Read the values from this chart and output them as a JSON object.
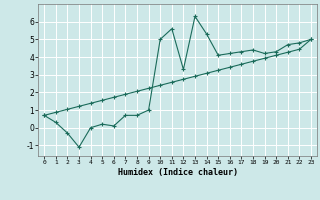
{
  "xlabel": "Humidex (Indice chaleur)",
  "ylabel": "",
  "bg_color": "#cde8e8",
  "grid_color": "#ffffff",
  "line_color": "#1a6b5a",
  "xlim": [
    -0.5,
    23.5
  ],
  "ylim": [
    -1.6,
    7.0
  ],
  "x_ticks": [
    0,
    1,
    2,
    3,
    4,
    5,
    6,
    7,
    8,
    9,
    10,
    11,
    12,
    13,
    14,
    15,
    16,
    17,
    18,
    19,
    20,
    21,
    22,
    23
  ],
  "y_ticks": [
    -1,
    0,
    1,
    2,
    3,
    4,
    5,
    6
  ],
  "line1_x": [
    0,
    1,
    2,
    3,
    4,
    5,
    6,
    7,
    8,
    9,
    10,
    11,
    12,
    13,
    14,
    15,
    16,
    17,
    18,
    19,
    20,
    21,
    22,
    23
  ],
  "line1_y": [
    0.7,
    0.3,
    -0.3,
    -1.1,
    0.0,
    0.2,
    0.1,
    0.7,
    0.7,
    1.0,
    5.0,
    5.6,
    3.3,
    6.3,
    5.3,
    4.1,
    4.2,
    4.3,
    4.4,
    4.2,
    4.3,
    4.7,
    4.8,
    5.0
  ],
  "line2_x": [
    0,
    1,
    2,
    3,
    4,
    5,
    6,
    7,
    8,
    9,
    10,
    11,
    12,
    13,
    14,
    15,
    16,
    17,
    18,
    19,
    20,
    21,
    22,
    23
  ],
  "line2_y": [
    0.7,
    0.87,
    1.04,
    1.21,
    1.38,
    1.55,
    1.72,
    1.89,
    2.06,
    2.23,
    2.4,
    2.57,
    2.74,
    2.91,
    3.08,
    3.25,
    3.42,
    3.59,
    3.76,
    3.93,
    4.1,
    4.27,
    4.44,
    5.0
  ]
}
